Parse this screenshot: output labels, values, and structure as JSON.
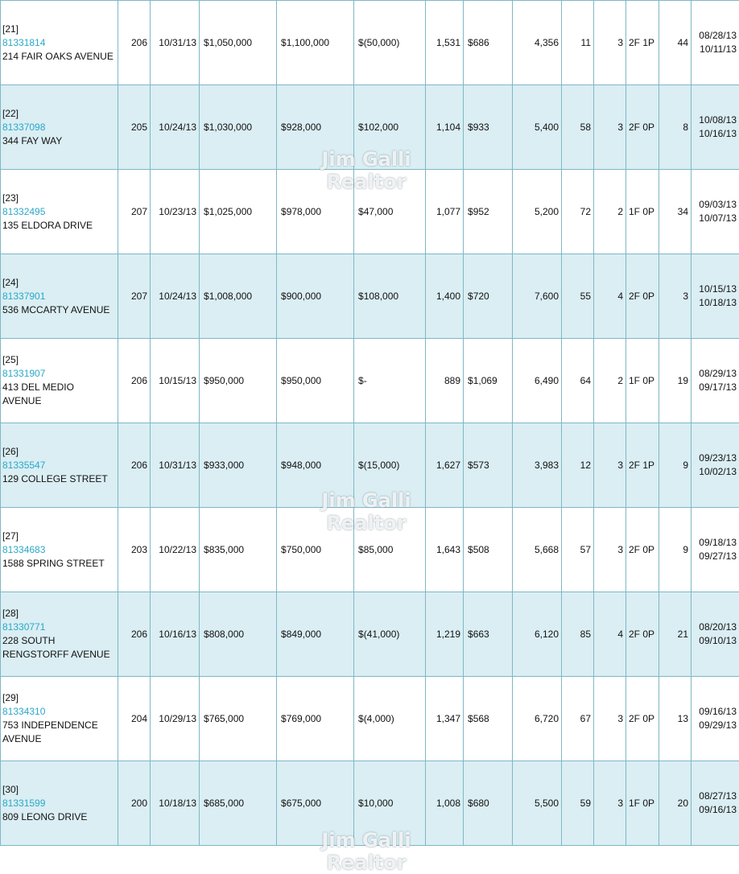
{
  "watermark": "Jim Galli Realtor",
  "rows": [
    {
      "rank": "[21]",
      "mls": "81331814",
      "address": "214 FAIR OAKS AVENUE",
      "area": "206",
      "close_date": "10/31/13",
      "sale_price": "1,050,000",
      "list_price": "1,100,000",
      "difference": "(50,000)",
      "sqft": "1,531",
      "price_per_sqft": "686",
      "lot": "4,356",
      "age": "11",
      "beds": "3",
      "baths": "2F 1P",
      "dom": "44",
      "date1": "08/28/13",
      "date2": "10/11/13"
    },
    {
      "rank": "[22]",
      "mls": "81337098",
      "address": "344 FAY WAY",
      "area": "205",
      "close_date": "10/24/13",
      "sale_price": "1,030,000",
      "list_price": "928,000",
      "difference": "102,000",
      "sqft": "1,104",
      "price_per_sqft": "933",
      "lot": "5,400",
      "age": "58",
      "beds": "3",
      "baths": "2F 0P",
      "dom": "8",
      "date1": "10/08/13",
      "date2": "10/16/13"
    },
    {
      "rank": "[23]",
      "mls": "81332495",
      "address": "135 ELDORA DRIVE",
      "area": "207",
      "close_date": "10/23/13",
      "sale_price": "1,025,000",
      "list_price": "978,000",
      "difference": "47,000",
      "sqft": "1,077",
      "price_per_sqft": "952",
      "lot": "5,200",
      "age": "72",
      "beds": "2",
      "baths": "1F 0P",
      "dom": "34",
      "date1": "09/03/13",
      "date2": "10/07/13"
    },
    {
      "rank": "[24]",
      "mls": "81337901",
      "address": "536 MCCARTY AVENUE",
      "area": "207",
      "close_date": "10/24/13",
      "sale_price": "1,008,000",
      "list_price": "900,000",
      "difference": "108,000",
      "sqft": "1,400",
      "price_per_sqft": "720",
      "lot": "7,600",
      "age": "55",
      "beds": "4",
      "baths": "2F 0P",
      "dom": "3",
      "date1": "10/15/13",
      "date2": "10/18/13"
    },
    {
      "rank": "[25]",
      "mls": "81331907",
      "address": "413 DEL MEDIO AVENUE",
      "area": "206",
      "close_date": "10/15/13",
      "sale_price": "950,000",
      "list_price": "950,000",
      "difference": "-",
      "sqft": "889",
      "price_per_sqft": "1,069",
      "lot": "6,490",
      "age": "64",
      "beds": "2",
      "baths": "1F 0P",
      "dom": "19",
      "date1": "08/29/13",
      "date2": "09/17/13"
    },
    {
      "rank": "[26]",
      "mls": "81335547",
      "address": "129 COLLEGE STREET",
      "area": "206",
      "close_date": "10/31/13",
      "sale_price": "933,000",
      "list_price": "948,000",
      "difference": "(15,000)",
      "sqft": "1,627",
      "price_per_sqft": "573",
      "lot": "3,983",
      "age": "12",
      "beds": "3",
      "baths": "2F 1P",
      "dom": "9",
      "date1": "09/23/13",
      "date2": "10/02/13"
    },
    {
      "rank": "[27]",
      "mls": "81334683",
      "address": "1588 SPRING STREET",
      "area": "203",
      "close_date": "10/22/13",
      "sale_price": "835,000",
      "list_price": "750,000",
      "difference": "85,000",
      "sqft": "1,643",
      "price_per_sqft": "508",
      "lot": "5,668",
      "age": "57",
      "beds": "3",
      "baths": "2F 0P",
      "dom": "9",
      "date1": "09/18/13",
      "date2": "09/27/13"
    },
    {
      "rank": "[28]",
      "mls": "81330771",
      "address": "228 SOUTH RENGSTORFF AVENUE",
      "area": "206",
      "close_date": "10/16/13",
      "sale_price": "808,000",
      "list_price": "849,000",
      "difference": "(41,000)",
      "sqft": "1,219",
      "price_per_sqft": "663",
      "lot": "6,120",
      "age": "85",
      "beds": "4",
      "baths": "2F 0P",
      "dom": "21",
      "date1": "08/20/13",
      "date2": "09/10/13"
    },
    {
      "rank": "[29]",
      "mls": "81334310",
      "address": "753 INDEPENDENCE AVENUE",
      "area": "204",
      "close_date": "10/29/13",
      "sale_price": "765,000",
      "list_price": "769,000",
      "difference": "(4,000)",
      "sqft": "1,347",
      "price_per_sqft": "568",
      "lot": "6,720",
      "age": "67",
      "beds": "3",
      "baths": "2F 0P",
      "dom": "13",
      "date1": "09/16/13",
      "date2": "09/29/13"
    },
    {
      "rank": "[30]",
      "mls": "81331599",
      "address": "809 LEONG DRIVE",
      "area": "200",
      "close_date": "10/18/13",
      "sale_price": "685,000",
      "list_price": "675,000",
      "difference": "10,000",
      "sqft": "1,008",
      "price_per_sqft": "680",
      "lot": "5,500",
      "age": "59",
      "beds": "3",
      "baths": "1F 0P",
      "dom": "20",
      "date1": "08/27/13",
      "date2": "09/16/13"
    }
  ],
  "currency_symbol": "$"
}
